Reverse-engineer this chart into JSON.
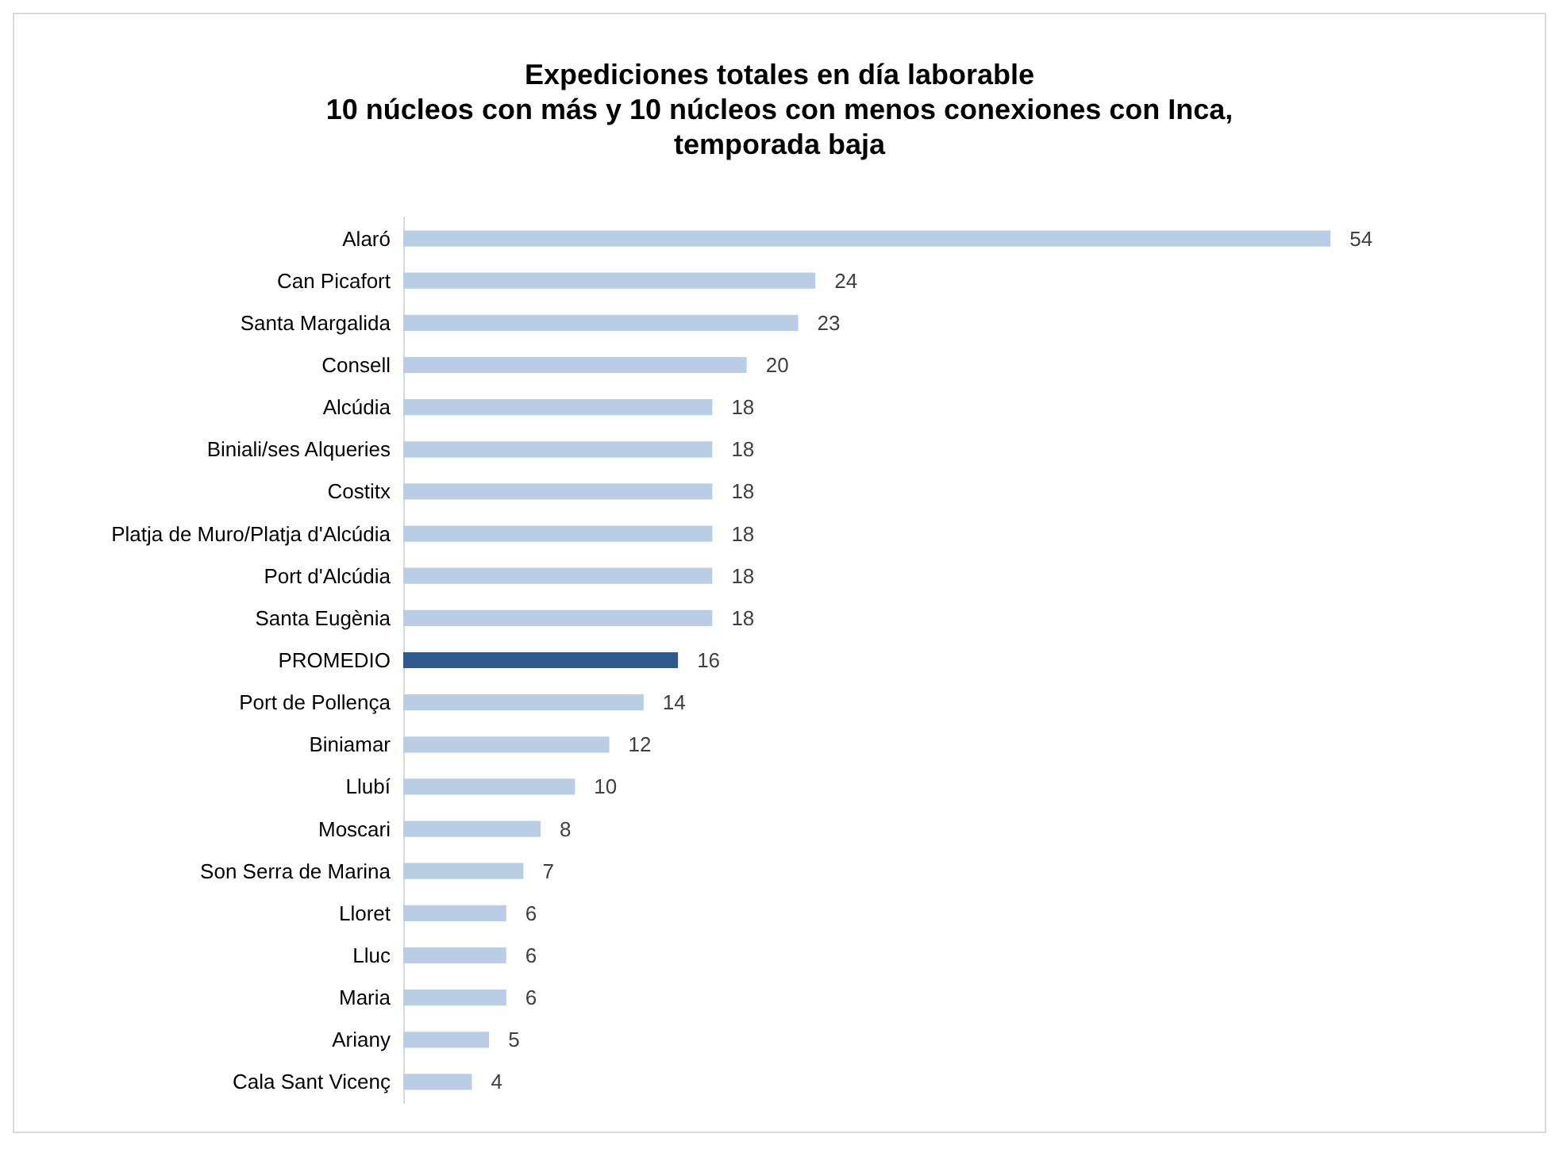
{
  "chart_data": {
    "type": "bar",
    "orientation": "horizontal",
    "title": "Expediciones totales en día laborable\n10 núcleos con más y 10 núcleos con menos conexiones con Inca,\ntemporada baja",
    "categories": [
      "Alaró",
      "Can Picafort",
      "Santa Margalida",
      "Consell",
      "Alcúdia",
      "Biniali/ses Alqueries",
      "Costitx",
      "Platja de Muro/Platja d'Alcúdia",
      "Port d'Alcúdia",
      "Santa Eugènia",
      "PROMEDIO",
      "Port de Pollença",
      "Biniamar",
      "Llubí",
      "Moscari",
      "Son Serra de Marina",
      "Lloret",
      "Lluc",
      "Maria",
      "Ariany",
      "Cala Sant Vicenç"
    ],
    "values": [
      54,
      24,
      23,
      20,
      18,
      18,
      18,
      18,
      18,
      18,
      16,
      14,
      12,
      10,
      8,
      7,
      6,
      6,
      6,
      5,
      4
    ],
    "colors": [
      "#b9cde5",
      "#b9cde5",
      "#b9cde5",
      "#b9cde5",
      "#b9cde5",
      "#b9cde5",
      "#b9cde5",
      "#b9cde5",
      "#b9cde5",
      "#b9cde5",
      "#2f5b8c",
      "#b9cde5",
      "#b9cde5",
      "#b9cde5",
      "#b9cde5",
      "#b9cde5",
      "#b9cde5",
      "#b9cde5",
      "#b9cde5",
      "#b9cde5",
      "#b9cde5"
    ],
    "data_labels": true,
    "tick_labels": "y"
  }
}
